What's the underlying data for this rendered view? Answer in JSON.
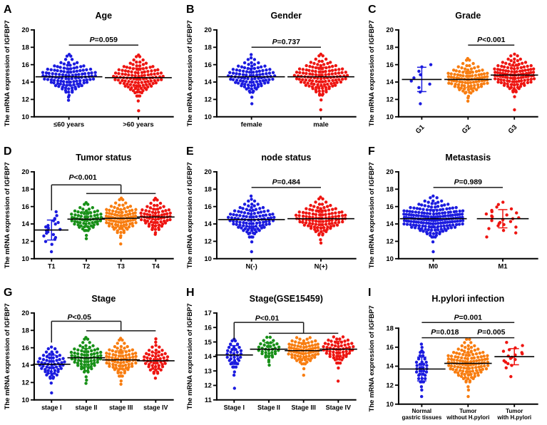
{
  "figure": {
    "background": "#ffffff",
    "ylabel": "The mRNA expression of IGFBP7",
    "palette": {
      "blue": "#1b1bdf",
      "red": "#ee1511",
      "orange": "#f87d10",
      "green": "#189018"
    }
  },
  "chart_data": [
    {
      "type": "scatter",
      "letter": "A",
      "title": "Age",
      "ylabel": "The mRNA expression of IGFBP7",
      "ylim": [
        10,
        20
      ],
      "yticks": [
        10,
        12,
        14,
        16,
        18,
        20
      ],
      "xtick_style": "horizontal",
      "groups": [
        {
          "label": "≤60 years",
          "color": "#1b1bdf",
          "n": 115,
          "mean": 14.6,
          "sd": 1.0,
          "min": 11.9,
          "max": 17.2
        },
        {
          "label": ">60 years",
          "color": "#ee1511",
          "n": 115,
          "mean": 14.5,
          "sd": 1.1,
          "min": 10.7,
          "max": 17.4
        }
      ],
      "annotations": [
        {
          "label": "P=0.059",
          "label_x": 0.5,
          "label_y": 18.85,
          "lines": [
            [
              0,
              18.25,
              1,
              18.25
            ]
          ]
        }
      ]
    },
    {
      "type": "scatter",
      "letter": "B",
      "title": "Gender",
      "ylabel": "The mRNA expression of IGFBP7",
      "ylim": [
        10,
        20
      ],
      "yticks": [
        10,
        12,
        14,
        16,
        18,
        20
      ],
      "xtick_style": "horizontal",
      "groups": [
        {
          "label": "female",
          "color": "#1b1bdf",
          "n": 100,
          "mean": 14.6,
          "sd": 1.0,
          "min": 11.5,
          "max": 17.3
        },
        {
          "label": "male",
          "color": "#ee1511",
          "n": 125,
          "mean": 14.6,
          "sd": 1.1,
          "min": 10.8,
          "max": 17.3
        }
      ],
      "annotations": [
        {
          "label": "P=0.737",
          "label_x": 0.5,
          "label_y": 18.6,
          "lines": [
            [
              0,
              18.0,
              1,
              18.0
            ]
          ]
        }
      ]
    },
    {
      "type": "scatter",
      "letter": "C",
      "title": "Grade",
      "ylabel": "The mRNA expression of IGFBP7",
      "ylim": [
        10,
        20
      ],
      "yticks": [
        10,
        12,
        14,
        16,
        18,
        20
      ],
      "xtick_style": "rotated",
      "groups": [
        {
          "label": "G1",
          "color": "#1b1bdf",
          "n": 10,
          "mean": 14.3,
          "sd": 1.4,
          "min": 11.5,
          "max": 16.0
        },
        {
          "label": "G2",
          "color": "#f87d10",
          "n": 100,
          "mean": 14.3,
          "sd": 0.95,
          "min": 11.8,
          "max": 17.0
        },
        {
          "label": "G3",
          "color": "#ee1511",
          "n": 115,
          "mean": 14.8,
          "sd": 1.05,
          "min": 10.8,
          "max": 17.4
        }
      ],
      "annotations": [
        {
          "label": "P<0.001",
          "label_x": 1.5,
          "label_y": 18.85,
          "lines": [
            [
              1,
              18.25,
              2,
              18.25
            ]
          ]
        }
      ]
    },
    {
      "type": "scatter",
      "letter": "D",
      "title": "Tumor status",
      "ylabel": "The mRNA expression of IGFBP7",
      "ylim": [
        10,
        20
      ],
      "yticks": [
        10,
        12,
        14,
        16,
        18,
        20
      ],
      "xtick_style": "horizontal",
      "groups": [
        {
          "label": "T1",
          "color": "#1b1bdf",
          "n": 20,
          "mean": 13.3,
          "sd": 1.15,
          "min": 10.8,
          "max": 15.4
        },
        {
          "label": "T2",
          "color": "#189018",
          "n": 65,
          "mean": 14.55,
          "sd": 0.85,
          "min": 12.3,
          "max": 16.5
        },
        {
          "label": "T3",
          "color": "#f87d10",
          "n": 90,
          "mean": 14.65,
          "sd": 1.0,
          "min": 11.7,
          "max": 17.3
        },
        {
          "label": "T4",
          "color": "#ee1511",
          "n": 70,
          "mean": 14.8,
          "sd": 0.95,
          "min": 12.8,
          "max": 17.2
        }
      ],
      "annotations": [
        {
          "label": "P<0.001",
          "label_x": 0.9,
          "label_y": 19.35,
          "lines": [
            [
              0,
              15.55,
              0,
              18.5
            ],
            [
              0,
              18.5,
              2,
              18.5
            ],
            [
              2,
              18.5,
              2,
              17.5
            ],
            [
              1,
              17.5,
              3,
              17.5
            ]
          ]
        }
      ]
    },
    {
      "type": "scatter",
      "letter": "E",
      "title": "node status",
      "ylabel": "The mRNA expression of IGFBP7",
      "ylim": [
        10,
        20
      ],
      "yticks": [
        10,
        12,
        14,
        16,
        18,
        20
      ],
      "xtick_style": "horizontal",
      "groups": [
        {
          "label": "N(-)",
          "color": "#1b1bdf",
          "n": 105,
          "mean": 14.5,
          "sd": 1.05,
          "min": 10.8,
          "max": 17.3
        },
        {
          "label": "N(+)",
          "color": "#ee1511",
          "n": 110,
          "mean": 14.6,
          "sd": 1.0,
          "min": 11.8,
          "max": 17.2
        }
      ],
      "annotations": [
        {
          "label": "P=0.484",
          "label_x": 0.5,
          "label_y": 18.8,
          "lines": [
            [
              0,
              18.2,
              1,
              18.2
            ]
          ]
        }
      ]
    },
    {
      "type": "scatter",
      "letter": "F",
      "title": "Metastasis",
      "ylabel": "The mRNA expression of IGFBP7",
      "ylim": [
        10,
        20
      ],
      "yticks": [
        10,
        12,
        14,
        16,
        18,
        20
      ],
      "xtick_style": "horizontal",
      "groups": [
        {
          "label": "M0",
          "color": "#1b1bdf",
          "n": 185,
          "mean": 14.6,
          "sd": 1.05,
          "min": 10.8,
          "max": 17.3
        },
        {
          "label": "M1",
          "color": "#ee1511",
          "n": 25,
          "mean": 14.6,
          "sd": 1.05,
          "min": 12.5,
          "max": 16.5
        }
      ],
      "annotations": [
        {
          "label": "P=0.989",
          "label_x": 0.5,
          "label_y": 18.8,
          "lines": [
            [
              0,
              18.2,
              1,
              18.2
            ]
          ]
        }
      ]
    },
    {
      "type": "scatter",
      "letter": "G",
      "title": "Stage",
      "ylabel": "The mRNA expression of IGFBP7",
      "ylim": [
        10,
        20
      ],
      "yticks": [
        10,
        12,
        14,
        16,
        18,
        20
      ],
      "xtick_style": "horizontal",
      "groups": [
        {
          "label": "stage I",
          "color": "#1b1bdf",
          "n": 60,
          "mean": 14.1,
          "sd": 1.05,
          "min": 10.8,
          "max": 16.3
        },
        {
          "label": "stage II",
          "color": "#189018",
          "n": 72,
          "mean": 14.85,
          "sd": 1.05,
          "min": 11.9,
          "max": 17.4
        },
        {
          "label": "stage III",
          "color": "#f87d10",
          "n": 80,
          "mean": 14.6,
          "sd": 1.05,
          "min": 11.8,
          "max": 17.3
        },
        {
          "label": "stage IV",
          "color": "#ee1511",
          "n": 52,
          "mean": 14.5,
          "sd": 0.95,
          "min": 12.5,
          "max": 17.2
        }
      ],
      "annotations": [
        {
          "label": "P<0.05",
          "label_x": 0.8,
          "label_y": 19.5,
          "lines": [
            [
              0,
              16.6,
              0,
              19.05
            ],
            [
              0,
              19.05,
              2,
              19.05
            ],
            [
              2,
              19.05,
              2,
              17.95
            ],
            [
              1,
              17.95,
              3,
              17.95
            ]
          ]
        }
      ]
    },
    {
      "type": "scatter",
      "letter": "H",
      "title": "Stage(GSE15459)",
      "ylabel": "The mRNA expression of IGFBP7",
      "ylim": [
        11,
        17
      ],
      "yticks": [
        11,
        12,
        13,
        14,
        15,
        16,
        17
      ],
      "xtick_style": "horizontal",
      "groups": [
        {
          "label": "Stage I",
          "color": "#1b1bdf",
          "n": 35,
          "mean": 14.1,
          "sd": 0.65,
          "min": 11.8,
          "max": 15.3
        },
        {
          "label": "Stage II",
          "color": "#189018",
          "n": 35,
          "mean": 14.5,
          "sd": 0.45,
          "min": 13.4,
          "max": 15.3
        },
        {
          "label": "Stage III",
          "color": "#f87d10",
          "n": 78,
          "mean": 14.4,
          "sd": 0.55,
          "min": 12.7,
          "max": 15.4
        },
        {
          "label": "Stage IV",
          "color": "#ee1511",
          "n": 60,
          "mean": 14.5,
          "sd": 0.55,
          "min": 12.3,
          "max": 15.4
        }
      ],
      "annotations": [
        {
          "label": "P<0.01",
          "label_x": 0.95,
          "label_y": 16.62,
          "lines": [
            [
              0,
              15.15,
              0,
              16.35
            ],
            [
              0,
              16.35,
              2,
              16.35
            ],
            [
              2,
              16.35,
              2,
              15.6
            ],
            [
              1,
              15.6,
              3,
              15.6
            ]
          ]
        }
      ]
    },
    {
      "type": "scatter",
      "letter": "I",
      "title": "H.pylori infection",
      "ylabel": "The mRNA expression of IGFBP7",
      "ylim": [
        10,
        19.6
      ],
      "yticks": [
        10,
        12,
        14,
        16,
        18
      ],
      "xtick_style": "two-line",
      "groups": [
        {
          "label": "Normal\ngastric tissues",
          "color": "#1b1bdf",
          "n": 35,
          "mean": 13.7,
          "sd": 1.25,
          "min": 10.8,
          "max": 16.5
        },
        {
          "label": "Tumor\nwithout H.pylori",
          "color": "#f87d10",
          "n": 120,
          "mean": 14.3,
          "sd": 1.1,
          "min": 10.8,
          "max": 16.7
        },
        {
          "label": "Tumor\nwith H.pylori",
          "color": "#ee1511",
          "n": 18,
          "mean": 15.0,
          "sd": 0.85,
          "min": 12.9,
          "max": 16.5
        }
      ],
      "annotations": [
        {
          "label": "P=0.001",
          "label_x": 1.0,
          "label_y": 19.1,
          "lines": [
            [
              0,
              18.6,
              2,
              18.6
            ]
          ]
        },
        {
          "label": "P=0.018",
          "label_x": 0.5,
          "label_y": 17.55,
          "lines": [
            [
              0,
              17.0,
              1,
              17.0
            ]
          ]
        },
        {
          "label": "P=0.005",
          "label_x": 1.5,
          "label_y": 17.55,
          "lines": [
            [
              1,
              17.0,
              2,
              17.0
            ]
          ]
        }
      ]
    }
  ]
}
